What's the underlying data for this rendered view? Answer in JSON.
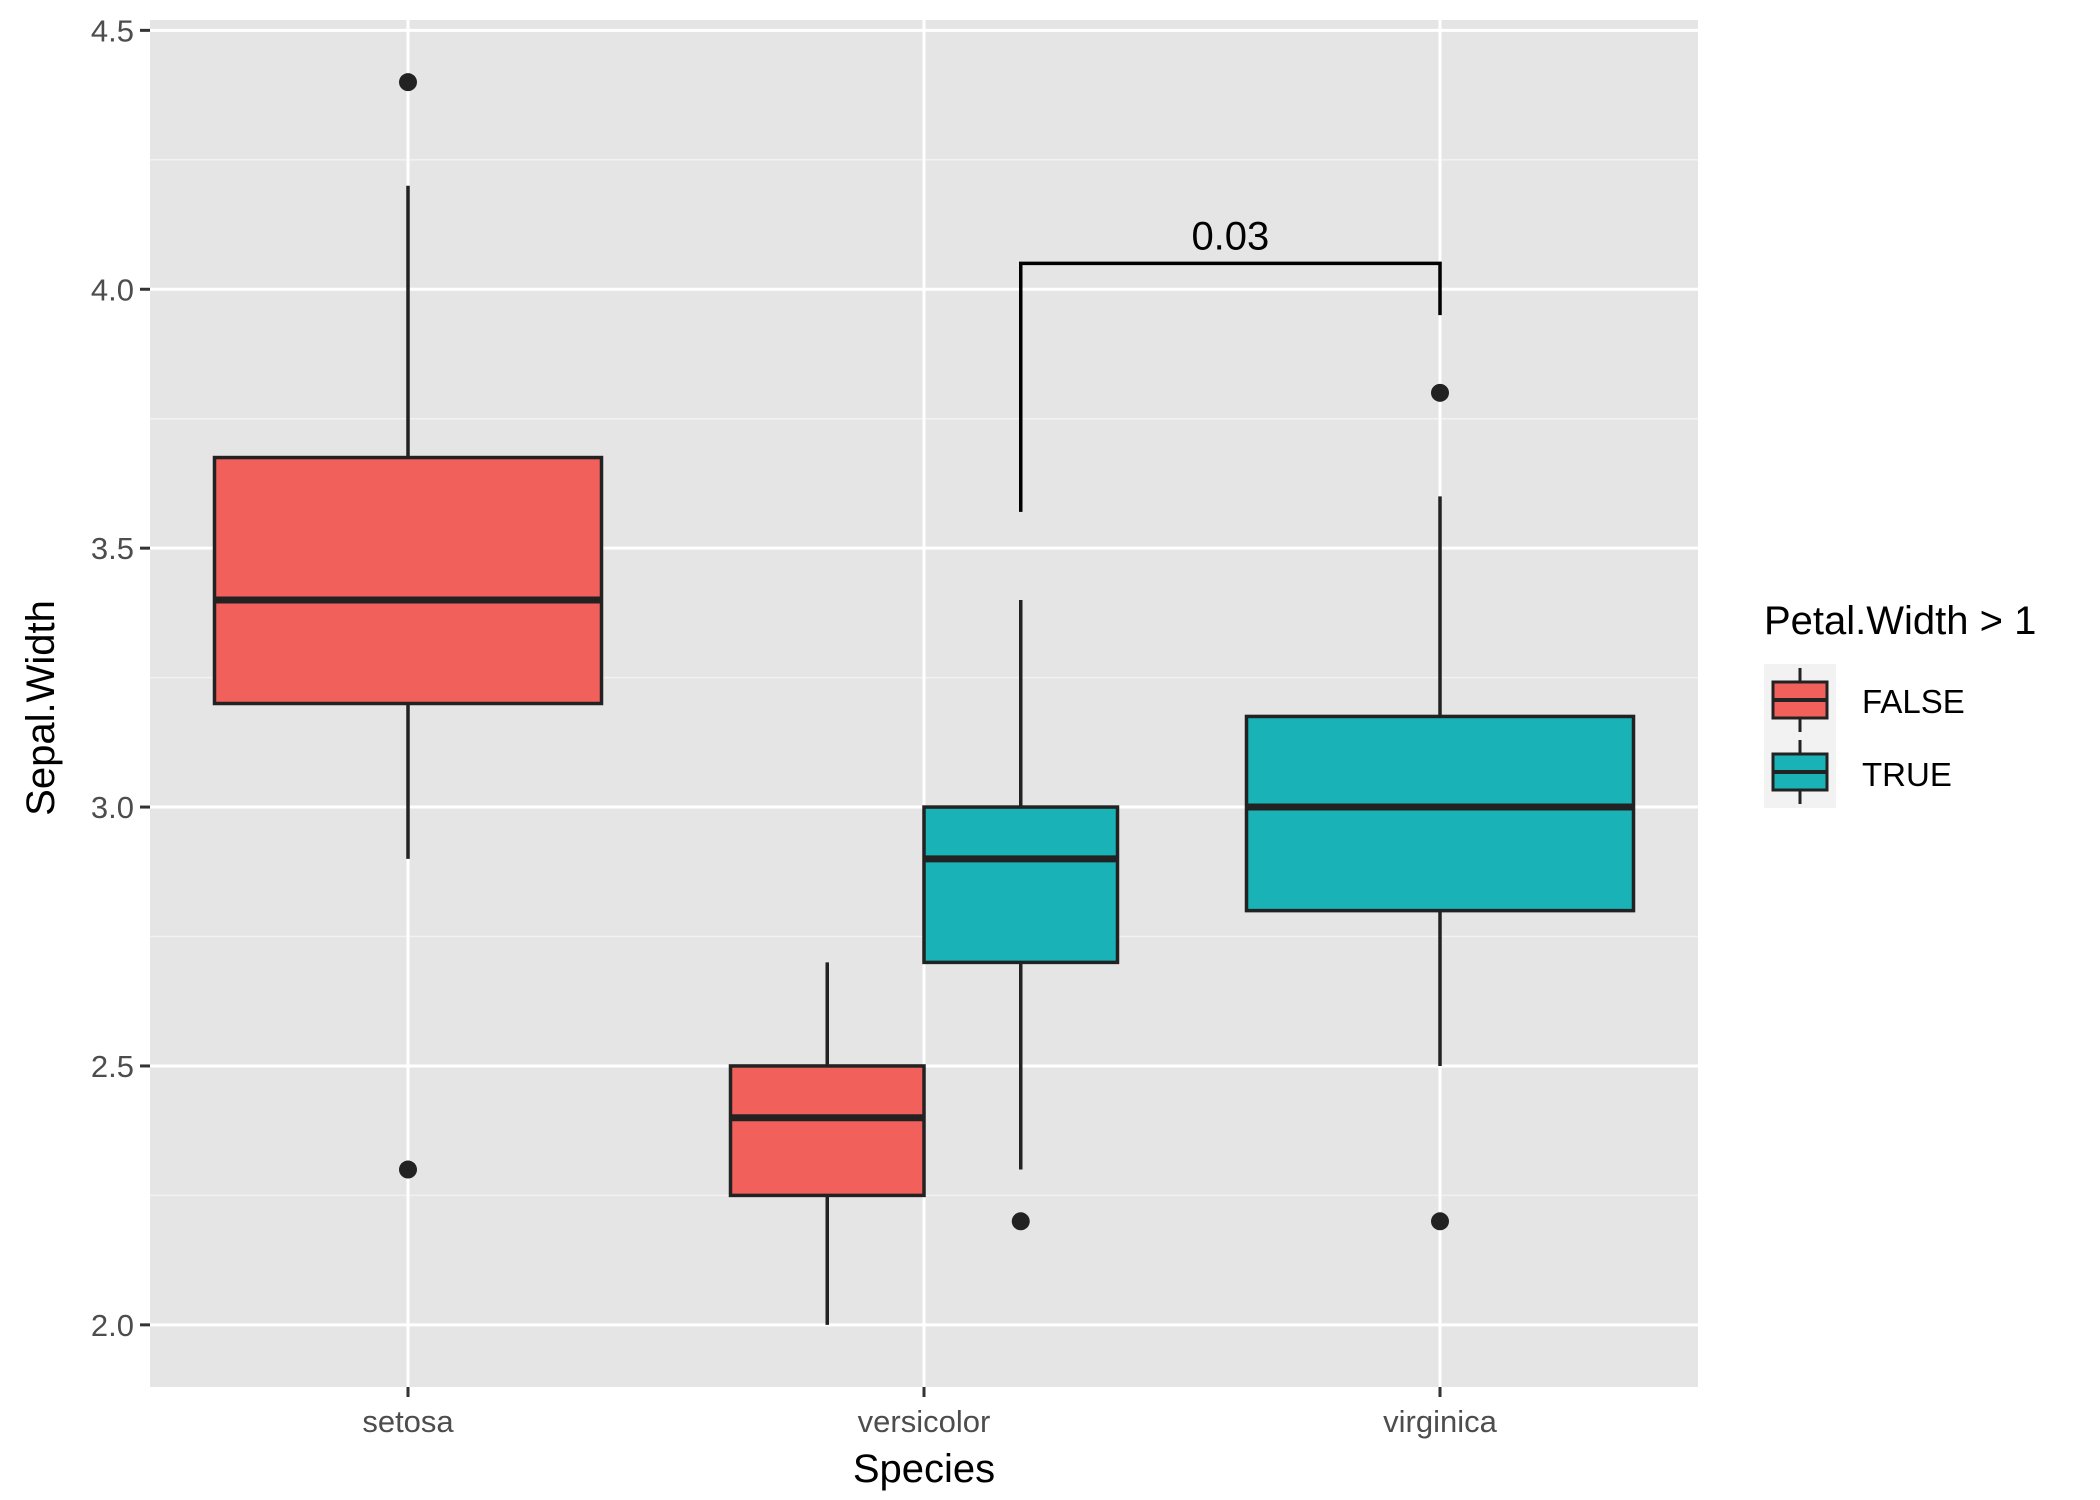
{
  "chart_data": {
    "type": "boxplot",
    "xlabel": "Species",
    "ylabel": "Sepal.Width",
    "categories": [
      "setosa",
      "versicolor",
      "virginica"
    ],
    "ylim": [
      1.88,
      4.52
    ],
    "yticks": [
      2.0,
      2.5,
      3.0,
      3.5,
      4.0,
      4.5
    ],
    "ytick_labels": [
      "2.0",
      "2.5",
      "3.0",
      "3.5",
      "4.0",
      "4.5"
    ],
    "grid": true,
    "legend": {
      "title": "Petal.Width > 1",
      "position": "right",
      "entries": [
        {
          "label": "FALSE",
          "color": "#F2605C"
        },
        {
          "label": "TRUE",
          "color": "#19B2B7"
        }
      ]
    },
    "boxes": [
      {
        "category": "setosa",
        "group": "FALSE",
        "whisker_low": 2.9,
        "q1": 3.2,
        "median": 3.4,
        "q3": 3.675,
        "whisker_high": 4.2,
        "outliers": [
          4.4,
          2.3
        ]
      },
      {
        "category": "versicolor",
        "group": "FALSE",
        "whisker_low": 2.0,
        "q1": 2.25,
        "median": 2.4,
        "q3": 2.5,
        "whisker_high": 2.7,
        "outliers": []
      },
      {
        "category": "versicolor",
        "group": "TRUE",
        "whisker_low": 2.3,
        "q1": 2.7,
        "median": 2.9,
        "q3": 3.0,
        "whisker_high": 3.4,
        "outliers": [
          2.2
        ]
      },
      {
        "category": "virginica",
        "group": "TRUE",
        "whisker_low": 2.5,
        "q1": 2.8,
        "median": 3.0,
        "q3": 3.175,
        "whisker_high": 3.6,
        "outliers": [
          3.8,
          2.2
        ]
      }
    ],
    "annotations": [
      {
        "label": "0.03",
        "from_category": "versicolor",
        "from_group": "TRUE",
        "to_category": "virginica",
        "to_group": "TRUE",
        "bracket_y": 4.05,
        "left_end_y": 3.57,
        "right_end_y": 3.95
      }
    ]
  },
  "colors": {
    "panel_background": "#E5E5E5",
    "grid_major": "#FFFFFF",
    "grid_minor": "#F2F2F2",
    "outline": "#222222",
    "false_fill": "#F2605C",
    "true_fill": "#19B2B7",
    "legend_key_background": "#F2F2F2"
  }
}
